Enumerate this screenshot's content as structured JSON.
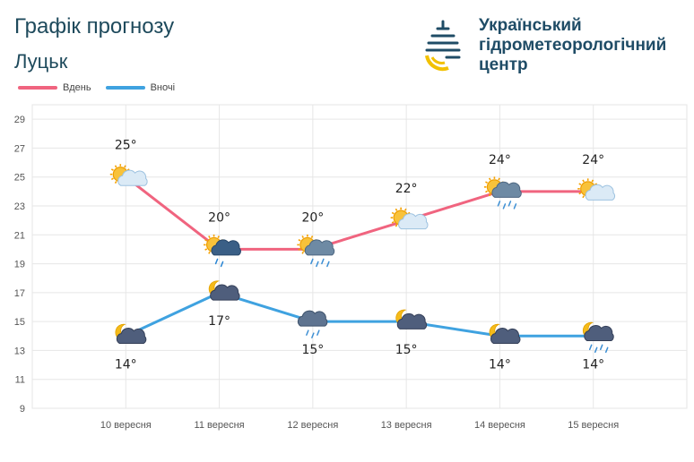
{
  "header": {
    "title": "Графік прогнозу",
    "city": "Луцьк"
  },
  "logo": {
    "line1": "Український",
    "line2": "гідрометеорологічний",
    "line3": "центр"
  },
  "colors": {
    "day": "#f0647f",
    "night": "#3fa2e0",
    "grid": "#e6e6e6",
    "title": "#1e4a5c"
  },
  "chart_data": {
    "type": "line",
    "categories": [
      "10 вересня",
      "11 вересня",
      "12 вересня",
      "13 вересня",
      "14 вересня",
      "15 вересня"
    ],
    "series": [
      {
        "name": "Вдень",
        "values": [
          25,
          20,
          20,
          22,
          24,
          24
        ],
        "labels": [
          "25°",
          "20°",
          "20°",
          "22°",
          "24°",
          "24°"
        ],
        "icons": [
          "sun-cloud-icon",
          "sun-rain-heavy-icon",
          "sun-rain-icon",
          "sun-cloud-icon",
          "sun-rain-icon",
          "sun-cloud-icon"
        ]
      },
      {
        "name": "Вночі",
        "values": [
          14,
          17,
          15,
          15,
          14,
          14
        ],
        "labels": [
          "14°",
          "17°",
          "15°",
          "15°",
          "14°",
          "14°"
        ],
        "icons": [
          "moon-cloud-icon",
          "moon-cloud-icon",
          "rain-cloud-icon",
          "moon-cloud-icon",
          "moon-cloud-icon",
          "moon-rain-icon"
        ]
      }
    ],
    "yticks": [
      9,
      11,
      13,
      15,
      17,
      19,
      21,
      23,
      25,
      27,
      29
    ],
    "ylim": [
      9,
      30
    ],
    "grid": true,
    "legend": "top-left"
  }
}
